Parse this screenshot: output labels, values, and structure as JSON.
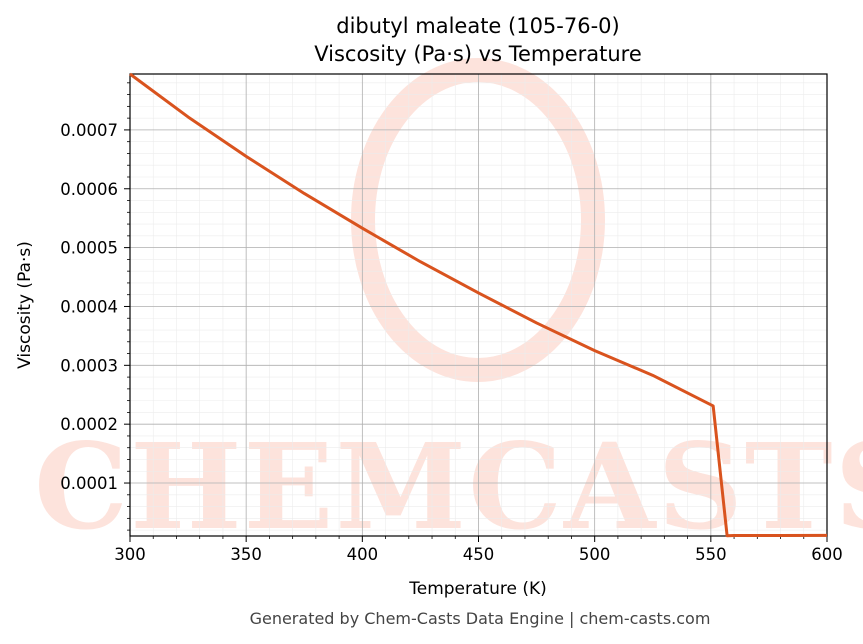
{
  "chart_data": {
    "type": "line",
    "title": "dibutyl maleate (105-76-0)",
    "subtitle": "Viscosity (Pa·s) vs Temperature",
    "xlabel": "Temperature (K)",
    "ylabel": "Viscosity (Pa·s)",
    "xlim": [
      300,
      600
    ],
    "ylim": [
      1e-05,
      0.000795
    ],
    "x_ticks": [
      300,
      350,
      400,
      450,
      500,
      550,
      600
    ],
    "x_tick_labels": [
      "300",
      "350",
      "400",
      "450",
      "500",
      "550",
      "600"
    ],
    "y_ticks": [
      0.0001,
      0.0002,
      0.0003,
      0.0004,
      0.0005,
      0.0006,
      0.0007
    ],
    "y_tick_labels": [
      "0.0001",
      "0.0002",
      "0.0003",
      "0.0004",
      "0.0005",
      "0.0006",
      "0.0007"
    ],
    "grid": true,
    "series": [
      {
        "color": "#d9531e",
        "x": [
          300,
          325,
          350,
          375,
          400,
          425,
          450,
          475,
          500,
          525,
          551,
          557,
          560,
          580,
          600
        ],
        "y": [
          0.000795,
          0.000722,
          0.000655,
          0.000592,
          0.000533,
          0.000476,
          0.000423,
          0.000372,
          0.000325,
          0.000283,
          0.000231,
          1.05e-05,
          1.08e-05,
          1.09e-05,
          1.1e-05
        ]
      }
    ]
  },
  "watermark": {
    "text": "CHEMCASTS",
    "color": "#fde3dc"
  },
  "footer": "Generated by Chem-Casts Data Engine | chem-casts.com"
}
